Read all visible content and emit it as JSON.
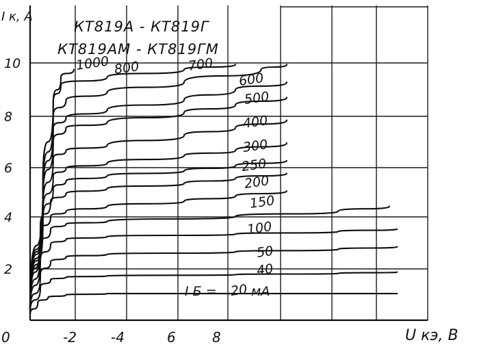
{
  "chart_data": {
    "type": "line",
    "title": "КТ819А - КТ819Г",
    "subtitle": "КТ819АМ - КТ819ГМ",
    "ylabel": "I к, А",
    "xlabel": "U кэ, В",
    "ylim": [
      0,
      12
    ],
    "xlim": [
      0,
      18
    ],
    "grid": true,
    "y_ticks": [
      "2",
      "4",
      "6",
      "8",
      "10"
    ],
    "x_ticks": [
      "0",
      "2",
      "4",
      "6",
      "8"
    ],
    "param_prefix": "I Б =",
    "param_unit": "мА",
    "series": [
      {
        "name": "1000",
        "x": [
          0,
          0.5,
          0.9,
          1.2,
          1.7
        ],
        "y": [
          0.4,
          5.5,
          8.6,
          9.6,
          9.9
        ]
      },
      {
        "name": "800",
        "x": [
          0,
          0.5,
          0.9,
          1.2,
          3,
          6,
          8
        ],
        "y": [
          0.4,
          5.5,
          8.6,
          9.3,
          9.6,
          9.9,
          10.1
        ]
      },
      {
        "name": "700",
        "x": [
          0,
          0.5,
          0.9,
          1.4,
          3,
          6,
          9,
          10
        ],
        "y": [
          0.4,
          5.2,
          8.1,
          8.7,
          9.0,
          9.4,
          9.9,
          10.1
        ]
      },
      {
        "name": "600",
        "x": [
          0,
          0.5,
          0.9,
          1.4,
          3,
          6,
          8,
          10
        ],
        "y": [
          0.4,
          5.0,
          7.6,
          8.0,
          8.3,
          8.7,
          9.1,
          9.4
        ]
      },
      {
        "name": "500",
        "x": [
          0,
          0.5,
          0.9,
          1.4,
          3,
          6,
          8,
          10
        ],
        "y": [
          0.4,
          4.8,
          7.1,
          7.6,
          7.8,
          8.2,
          8.5,
          8.8
        ]
      },
      {
        "name": "400",
        "x": [
          0,
          0.5,
          0.9,
          1.4,
          3,
          6,
          8,
          10
        ],
        "y": [
          0.4,
          4.5,
          6.4,
          6.7,
          6.9,
          7.3,
          7.6,
          7.9
        ]
      },
      {
        "name": "300",
        "x": [
          0,
          0.5,
          0.9,
          1.4,
          3,
          6,
          8,
          10
        ],
        "y": [
          0.4,
          4.3,
          5.7,
          6.0,
          6.2,
          6.5,
          6.7,
          7.0
        ]
      },
      {
        "name": "250",
        "x": [
          0,
          0.5,
          0.9,
          1.4,
          3,
          6,
          8,
          10
        ],
        "y": [
          0.4,
          4.0,
          5.2,
          5.5,
          5.7,
          5.9,
          6.1,
          6.3
        ]
      },
      {
        "name": "200",
        "x": [
          0,
          0.4,
          0.8,
          1.4,
          3,
          6,
          8,
          10
        ],
        "y": [
          0.4,
          3.7,
          4.7,
          5.0,
          5.2,
          5.4,
          5.6,
          5.8
        ]
      },
      {
        "name": "150",
        "x": [
          0,
          0.4,
          0.8,
          1.4,
          3,
          6,
          8,
          10
        ],
        "y": [
          0.4,
          3.4,
          4.1,
          4.3,
          4.5,
          4.7,
          4.9,
          5.1
        ]
      },
      {
        "name": "100",
        "x": [
          0,
          0.4,
          0.8,
          1.4,
          3,
          8,
          12,
          14
        ],
        "y": [
          0.35,
          2.9,
          3.6,
          3.8,
          3.9,
          4.1,
          4.3,
          4.5
        ]
      },
      {
        "name": "50",
        "x": [
          0,
          0.4,
          0.8,
          1.4,
          3,
          8,
          12,
          14.3
        ],
        "y": [
          0.35,
          2.4,
          3.0,
          3.2,
          3.3,
          3.4,
          3.5,
          3.6
        ]
      },
      {
        "name": "40",
        "x": [
          0,
          0.4,
          0.8,
          1.4,
          3,
          8,
          12,
          14.3
        ],
        "y": [
          0.3,
          1.8,
          2.3,
          2.5,
          2.6,
          2.7,
          2.8,
          2.9
        ]
      },
      {
        "name": "20",
        "x": [
          0,
          0.4,
          0.8,
          1.4,
          3,
          8,
          12,
          14.3
        ],
        "y": [
          0.3,
          1.3,
          1.6,
          1.7,
          1.75,
          1.8,
          1.85,
          1.9
        ]
      },
      {
        "name": "",
        "x": [
          0,
          0.3,
          0.7,
          1.4,
          3,
          8,
          12,
          14.3
        ],
        "y": [
          0.2,
          0.7,
          0.9,
          1.0,
          1.05,
          1.05,
          1.05,
          1.05
        ]
      }
    ]
  }
}
